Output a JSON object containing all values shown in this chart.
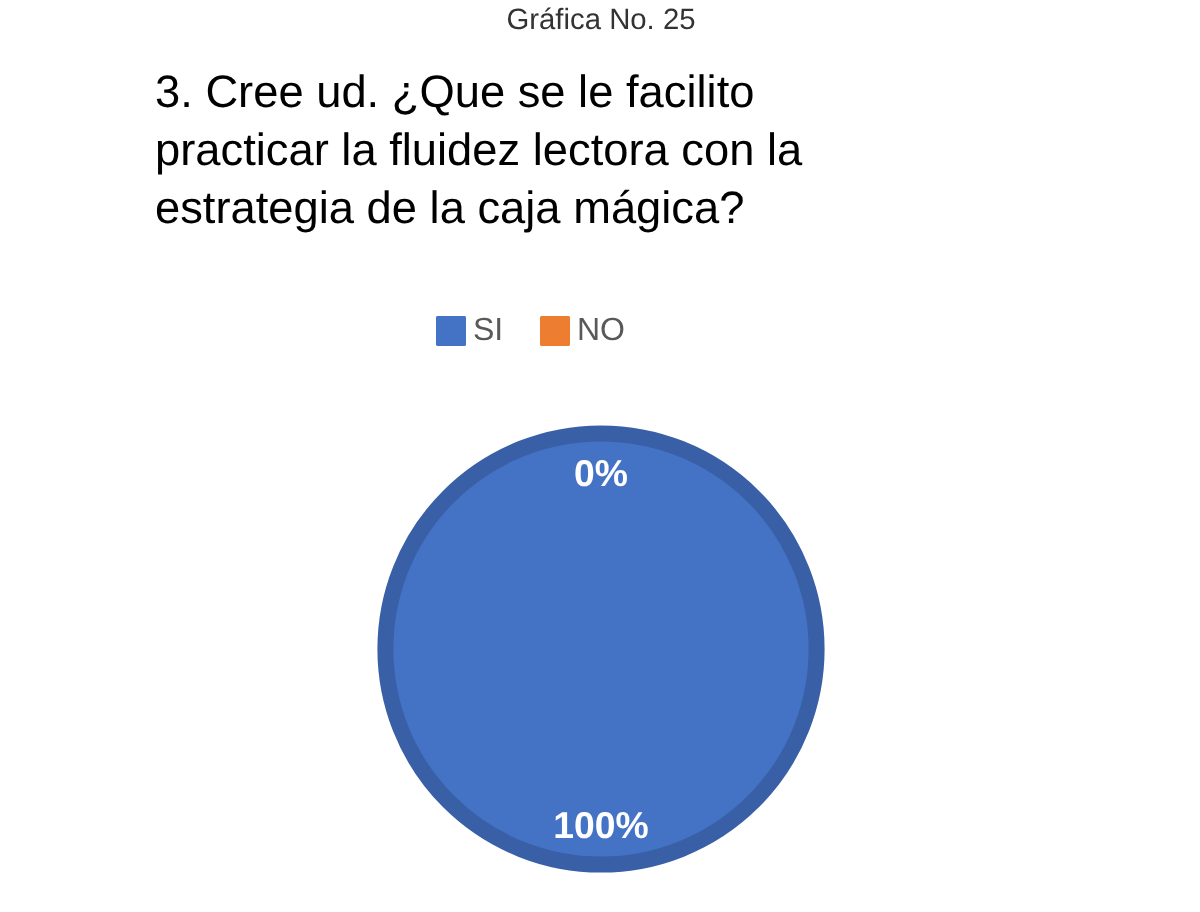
{
  "chart_data": {
    "type": "pie",
    "title": "3. Cree ud. ¿Que se le facilito practicar la fluidez lectora con la estrategia de la caja mágica?",
    "annotations": [
      "Gráfica No. 25"
    ],
    "categories": [
      "SI",
      "NO"
    ],
    "values": [
      100,
      0
    ],
    "colors": [
      "#4472c4",
      "#ed7d31"
    ],
    "value_labels": [
      "100%",
      "0%"
    ],
    "legend": "top"
  }
}
